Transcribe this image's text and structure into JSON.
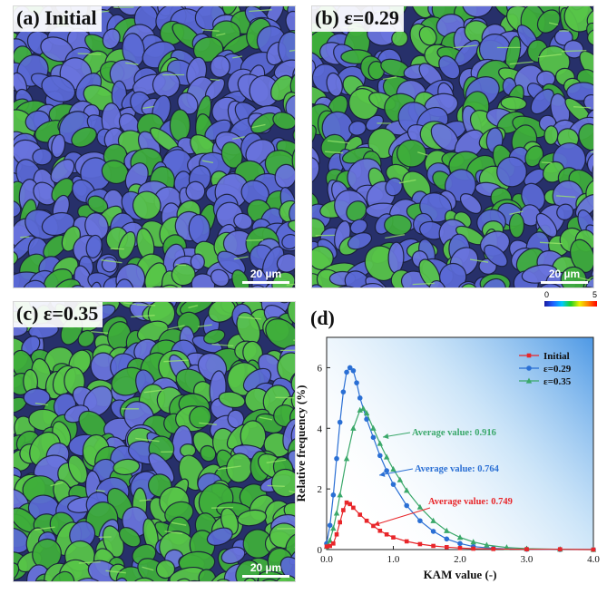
{
  "panels": {
    "a": {
      "label": "(a) Initial",
      "scale": "20 µm"
    },
    "b": {
      "label": "(b) ε=0.29",
      "scale": "20 µm"
    },
    "c": {
      "label": "(c) ε=0.35",
      "scale": "20 µm"
    }
  },
  "colorbar": {
    "min": "0",
    "max": "5"
  },
  "colors": {
    "initial": "#e8262a",
    "e029": "#2a6fd4",
    "e035": "#3aa86a",
    "grain_blue": "#5b6ad6",
    "grain_green": "#3ec23a"
  },
  "chart_data": {
    "type": "line",
    "panel_label": "(d)",
    "xlabel": "KAM value (-)",
    "ylabel": "Relative frequency (%)",
    "xlim": [
      0,
      4
    ],
    "ylim": [
      0,
      7
    ],
    "xticks": [
      "0.0",
      "1.0",
      "2.0",
      "3.0",
      "4.0"
    ],
    "yticks": [
      "0",
      "2",
      "4",
      "6"
    ],
    "series": [
      {
        "name": "Initial",
        "marker": "square",
        "color": "#e8262a",
        "x": [
          0,
          0.05,
          0.1,
          0.15,
          0.2,
          0.25,
          0.3,
          0.35,
          0.4,
          0.5,
          0.6,
          0.7,
          0.8,
          0.9,
          1.0,
          1.2,
          1.4,
          1.6,
          1.8,
          2.0,
          2.2,
          2.5,
          3.0,
          3.5,
          4.0
        ],
        "y": [
          0.1,
          0.12,
          0.2,
          0.5,
          0.9,
          1.3,
          1.55,
          1.5,
          1.38,
          1.15,
          0.95,
          0.78,
          0.62,
          0.5,
          0.4,
          0.27,
          0.18,
          0.12,
          0.08,
          0.05,
          0.03,
          0.02,
          0.01,
          0.01,
          0.0
        ]
      },
      {
        "name": "ε=0.29",
        "marker": "circle",
        "color": "#2a6fd4",
        "x": [
          0,
          0.05,
          0.1,
          0.15,
          0.2,
          0.25,
          0.3,
          0.35,
          0.4,
          0.45,
          0.5,
          0.6,
          0.7,
          0.8,
          0.9,
          1.0,
          1.2,
          1.4,
          1.6,
          1.8,
          2.0,
          2.2,
          2.5,
          3.0,
          3.5,
          4.0
        ],
        "y": [
          0.2,
          0.8,
          1.8,
          3.0,
          4.2,
          5.2,
          5.85,
          6.0,
          5.9,
          5.5,
          5.0,
          4.3,
          3.7,
          3.1,
          2.6,
          2.15,
          1.45,
          0.95,
          0.6,
          0.35,
          0.2,
          0.1,
          0.04,
          0.01,
          0.0,
          0.0
        ]
      },
      {
        "name": "ε=0.35",
        "marker": "triangle",
        "color": "#3aa86a",
        "x": [
          0,
          0.05,
          0.1,
          0.15,
          0.2,
          0.3,
          0.4,
          0.5,
          0.55,
          0.6,
          0.7,
          0.8,
          0.9,
          1.0,
          1.1,
          1.2,
          1.4,
          1.6,
          1.8,
          2.0,
          2.2,
          2.4,
          2.7,
          3.0,
          3.5,
          4.0
        ],
        "y": [
          0.1,
          0.3,
          0.7,
          1.2,
          1.8,
          3.0,
          4.0,
          4.6,
          4.65,
          4.5,
          4.0,
          3.5,
          3.05,
          2.65,
          2.3,
          1.95,
          1.4,
          0.95,
          0.62,
          0.4,
          0.25,
          0.15,
          0.07,
          0.03,
          0.01,
          0.0
        ]
      }
    ],
    "annotations": [
      {
        "text": "Average value: 0.916",
        "color": "#3aa86a"
      },
      {
        "text": "Average value: 0.764",
        "color": "#2a6fd4"
      },
      {
        "text": "Average value: 0.749",
        "color": "#e8262a"
      }
    ]
  }
}
